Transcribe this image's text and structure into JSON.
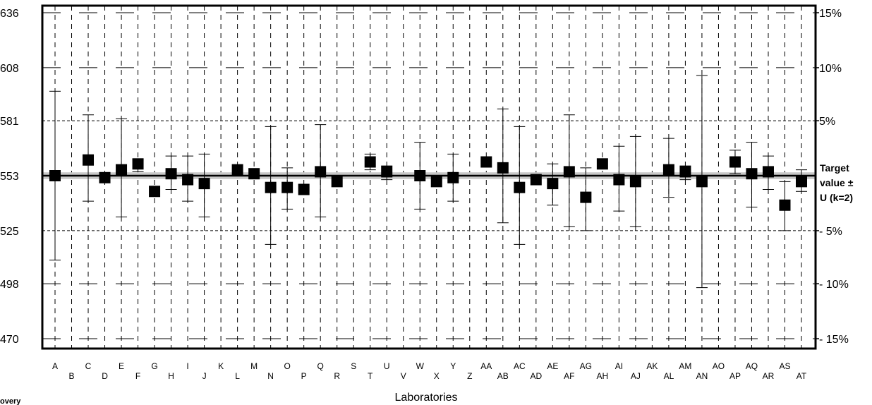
{
  "chart_data": {
    "type": "scatter",
    "xlabel": "Laboratories",
    "corner_label": "overy",
    "target_label_lines": [
      "Target",
      "value ±",
      "U (k=2)"
    ],
    "categories": [
      "A",
      "B",
      "C",
      "D",
      "E",
      "F",
      "G",
      "H",
      "I",
      "J",
      "K",
      "L",
      "M",
      "N",
      "O",
      "P",
      "Q",
      "R",
      "S",
      "T",
      "U",
      "V",
      "W",
      "X",
      "Y",
      "Z",
      "AA",
      "AB",
      "AC",
      "AD",
      "AE",
      "AF",
      "AG",
      "AH",
      "AI",
      "AJ",
      "AK",
      "AL",
      "AM",
      "AN",
      "AO",
      "AP",
      "AQ",
      "AR",
      "AS",
      "AT"
    ],
    "ylim": [
      470,
      636
    ],
    "yticks": [
      "470",
      "498",
      "525",
      "553",
      "581",
      "608",
      "636"
    ],
    "right_ticks": [
      {
        "label": "15%",
        "value": 636
      },
      {
        "label": "10%",
        "value": 608
      },
      {
        "label": "5%",
        "value": 581
      },
      {
        "label": "- 5%",
        "value": 525
      },
      {
        "label": "- 10%",
        "value": 498
      },
      {
        "label": "- 15%",
        "value": 470
      }
    ],
    "target_value": 553,
    "target_band": [
      552,
      554
    ],
    "points": [
      {
        "lab": "A",
        "value": 553,
        "low": 510,
        "high": 596
      },
      {
        "lab": "B",
        "value": null
      },
      {
        "lab": "C",
        "value": 561,
        "low": 540,
        "high": 584
      },
      {
        "lab": "D",
        "value": 552,
        "low": null,
        "high": null
      },
      {
        "lab": "E",
        "value": 556,
        "low": 532,
        "high": 582
      },
      {
        "lab": "F",
        "value": 559,
        "low": 555,
        "high": 561
      },
      {
        "lab": "G",
        "value": 545,
        "low": null,
        "high": null
      },
      {
        "lab": "H",
        "value": 554,
        "low": 546,
        "high": 563
      },
      {
        "lab": "I",
        "value": 551,
        "low": 540,
        "high": 563
      },
      {
        "lab": "J",
        "value": 549,
        "low": 532,
        "high": 564
      },
      {
        "lab": "K",
        "value": null
      },
      {
        "lab": "L",
        "value": 556,
        "low": null,
        "high": null
      },
      {
        "lab": "M",
        "value": 554,
        "low": null,
        "high": null
      },
      {
        "lab": "N",
        "value": 547,
        "low": 518,
        "high": 578
      },
      {
        "lab": "O",
        "value": 547,
        "low": 536,
        "high": 557
      },
      {
        "lab": "P",
        "value": 546,
        "low": null,
        "high": null
      },
      {
        "lab": "Q",
        "value": 555,
        "low": 532,
        "high": 579
      },
      {
        "lab": "R",
        "value": 550,
        "low": null,
        "high": null
      },
      {
        "lab": "S",
        "value": null
      },
      {
        "lab": "T",
        "value": 560,
        "low": 556,
        "high": 564
      },
      {
        "lab": "U",
        "value": 555,
        "low": 551,
        "high": 558
      },
      {
        "lab": "V",
        "value": null
      },
      {
        "lab": "W",
        "value": 553,
        "low": 536,
        "high": 570
      },
      {
        "lab": "X",
        "value": 550,
        "low": null,
        "high": null
      },
      {
        "lab": "Y",
        "value": 552,
        "low": 540,
        "high": 564
      },
      {
        "lab": "Z",
        "value": null
      },
      {
        "lab": "AA",
        "value": 560,
        "low": null,
        "high": null
      },
      {
        "lab": "AB",
        "value": 557,
        "low": 529,
        "high": 587
      },
      {
        "lab": "AC",
        "value": 547,
        "low": 518,
        "high": 578
      },
      {
        "lab": "AD",
        "value": 551,
        "low": null,
        "high": null
      },
      {
        "lab": "AE",
        "value": 549,
        "low": 538,
        "high": 559
      },
      {
        "lab": "AF",
        "value": 555,
        "low": 527,
        "high": 584
      },
      {
        "lab": "AG",
        "value": 542,
        "low": 525,
        "high": 557
      },
      {
        "lab": "AH",
        "value": 559,
        "low": null,
        "high": null
      },
      {
        "lab": "AI",
        "value": 551,
        "low": 535,
        "high": 568
      },
      {
        "lab": "AJ",
        "value": 550,
        "low": 527,
        "high": 573
      },
      {
        "lab": "AK",
        "value": null
      },
      {
        "lab": "AL",
        "value": 556,
        "low": 542,
        "high": 572
      },
      {
        "lab": "AM",
        "value": 555,
        "low": 551,
        "high": 558
      },
      {
        "lab": "AN",
        "value": 550,
        "low": 496,
        "high": 604
      },
      {
        "lab": "AO",
        "value": null
      },
      {
        "lab": "AP",
        "value": 560,
        "low": 554,
        "high": 566
      },
      {
        "lab": "AQ",
        "value": 554,
        "low": 537,
        "high": 570
      },
      {
        "lab": "AR",
        "value": 555,
        "low": 546,
        "high": 563
      },
      {
        "lab": "AS",
        "value": 538,
        "low": 525,
        "high": 550
      },
      {
        "lab": "AT",
        "value": 550,
        "low": 545,
        "high": 556
      }
    ]
  }
}
